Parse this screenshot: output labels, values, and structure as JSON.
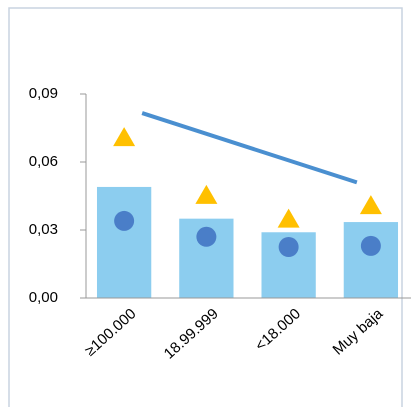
{
  "chart_data": {
    "type": "combo",
    "categories": [
      "≥100.000",
      "18.99.999",
      "<18.000",
      "Muy baja"
    ],
    "series": [
      {
        "kind": "bar",
        "color": "#8ccdef",
        "values": [
          0.049,
          0.035,
          0.029,
          0.0335
        ]
      },
      {
        "kind": "circle",
        "color": "#4a7ec8",
        "values": [
          0.034,
          0.027,
          0.0225,
          0.023
        ]
      },
      {
        "kind": "triangle",
        "color": "#ffc000",
        "values": [
          0.071,
          0.0455,
          0.035,
          0.041
        ]
      },
      {
        "kind": "line",
        "color": "#4a8fd0",
        "values": [
          0.0816,
          null,
          null,
          0.051
        ]
      }
    ],
    "ylim": [
      0,
      0.09
    ],
    "yticks": [
      {
        "value": 0,
        "label": "0,00"
      },
      {
        "value": 0.03,
        "label": "0,03"
      },
      {
        "value": 0.06,
        "label": "0,06"
      },
      {
        "value": 0.09,
        "label": "0,09"
      }
    ]
  }
}
